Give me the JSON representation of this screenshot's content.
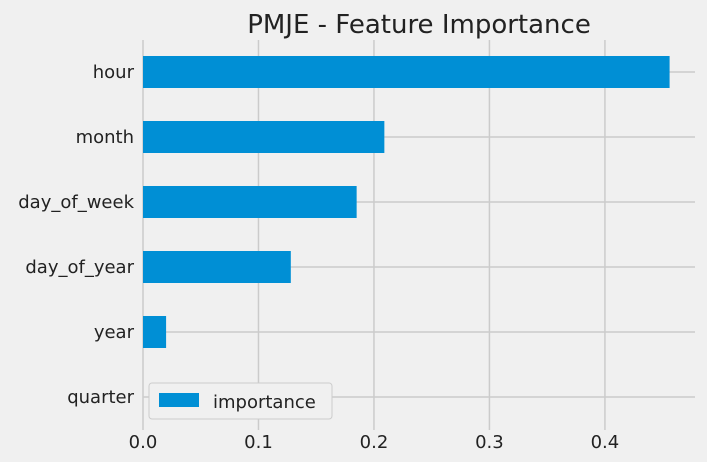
{
  "chart_data": {
    "type": "bar",
    "orientation": "horizontal",
    "title": "PMJE - Feature Importance",
    "xlabel": "",
    "ylabel": "",
    "categories": [
      "hour",
      "month",
      "day_of_week",
      "day_of_year",
      "year",
      "quarter"
    ],
    "series": [
      {
        "name": "importance",
        "values": [
          0.456,
          0.209,
          0.185,
          0.128,
          0.02,
          0.0
        ]
      }
    ],
    "xlim": [
      0,
      0.478
    ],
    "xticks": [
      "0.0",
      "0.1",
      "0.2",
      "0.3",
      "0.4"
    ],
    "xtick_values": [
      0.0,
      0.1,
      0.2,
      0.3,
      0.4
    ],
    "grid": true,
    "legend_position": "lower-left",
    "colors": {
      "bar": "#008fd5",
      "background": "#f0f0f0",
      "grid": "#cbcbcb"
    }
  }
}
